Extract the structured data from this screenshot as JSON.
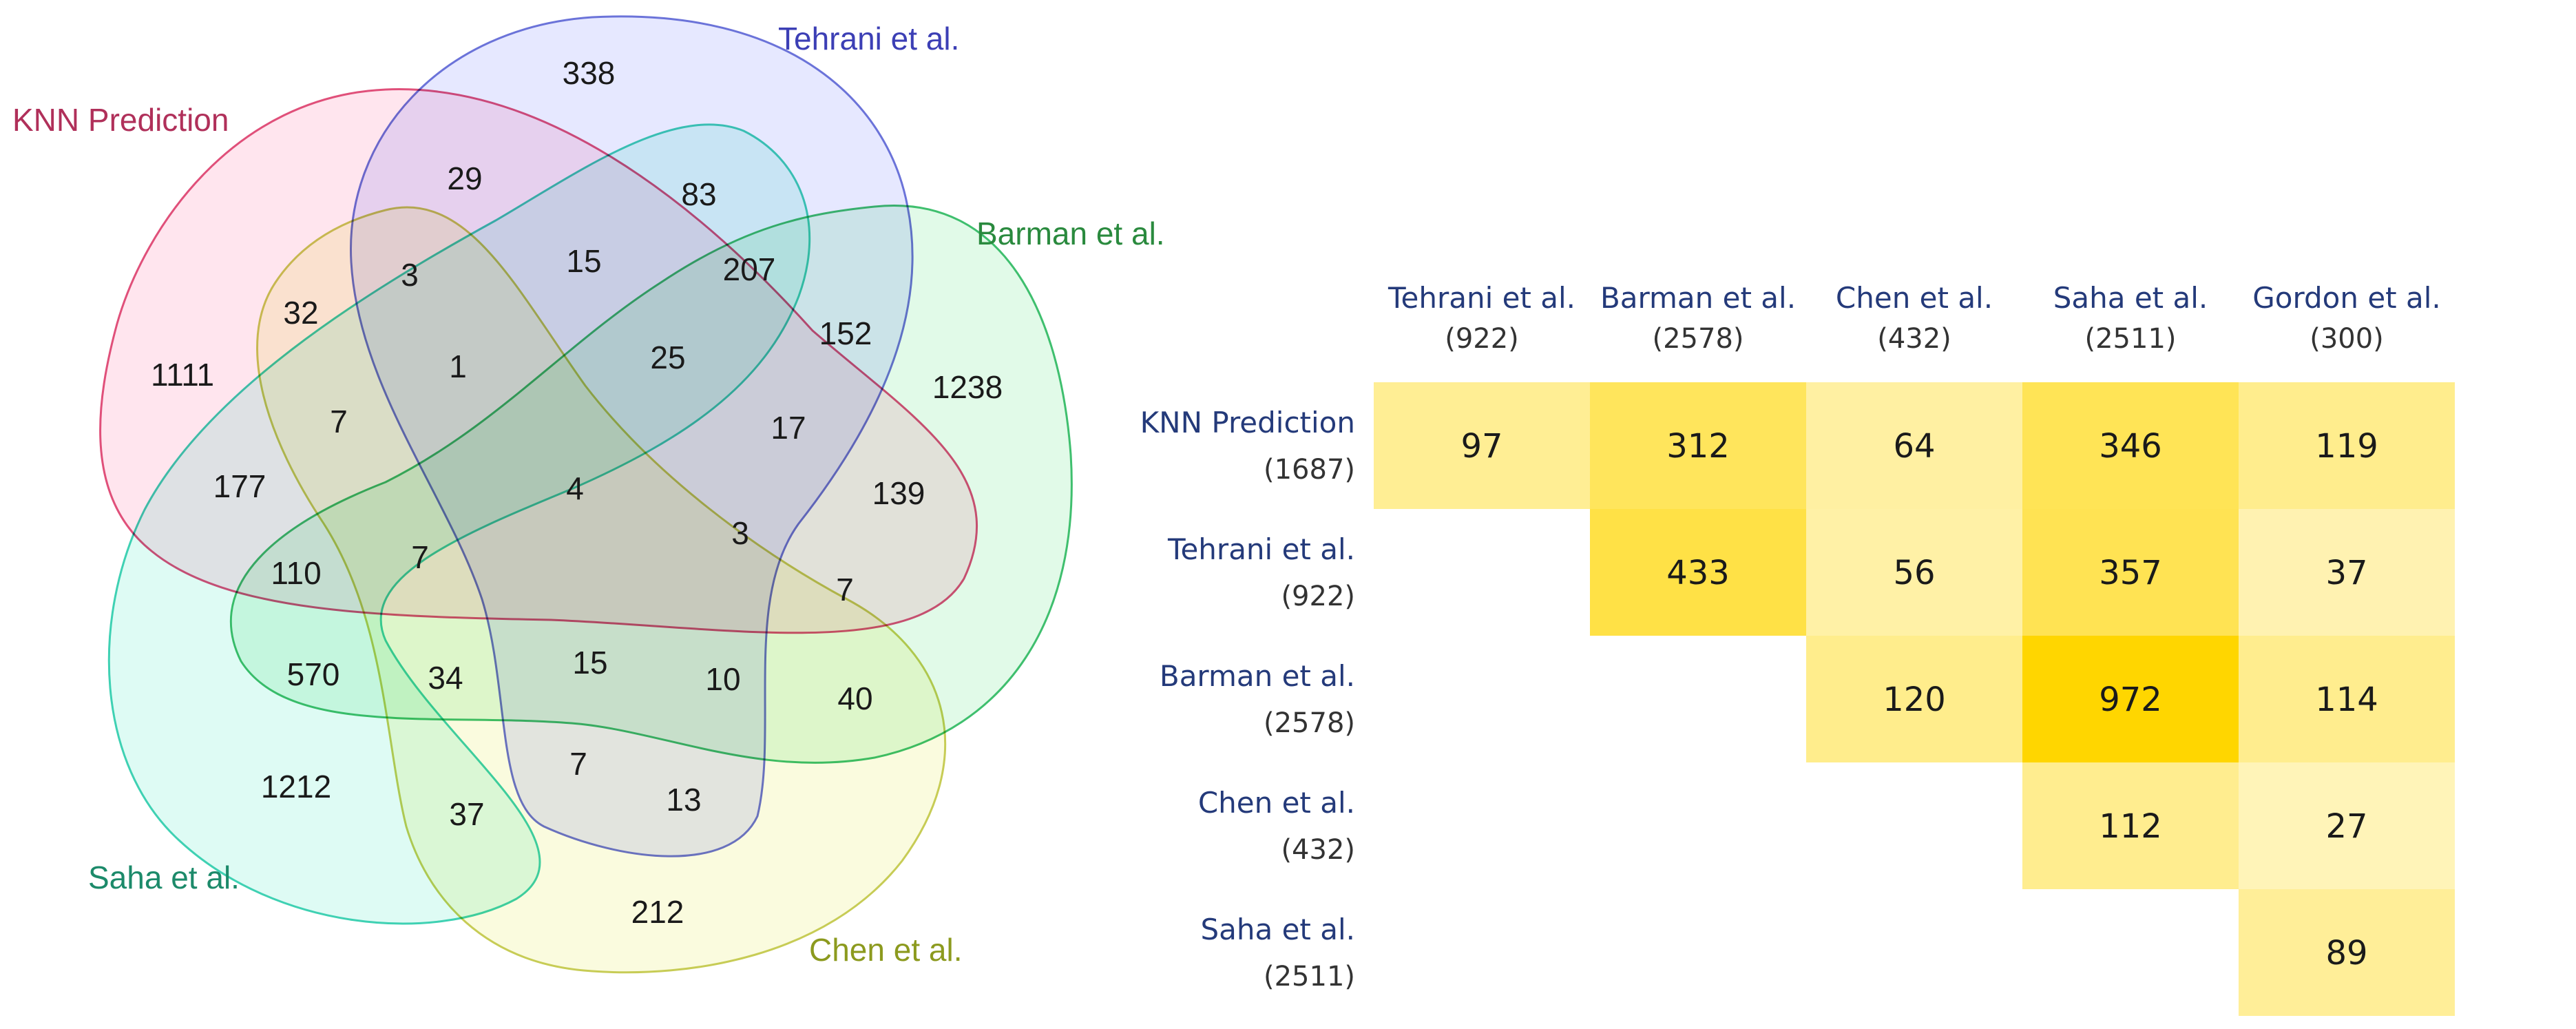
{
  "venn": {
    "sets": [
      {
        "key": "knn",
        "label": "KNN Prediction",
        "stroke": "#e0507a",
        "fill": "#ffc0d6",
        "label_color": "#b0305a"
      },
      {
        "key": "tehrani",
        "label": "Tehrani et al.",
        "stroke": "#6b73d9",
        "fill": "#c4c8ff",
        "label_color": "#3c3fb5"
      },
      {
        "key": "barman",
        "label": "Barman et al.",
        "stroke": "#3fbf6e",
        "fill": "#b8f2c8",
        "label_color": "#2a8a3e"
      },
      {
        "key": "chen",
        "label": "Chen et al.",
        "stroke": "#c7cc55",
        "fill": "#f4f6b0",
        "label_color": "#8c9a1e"
      },
      {
        "key": "saha",
        "label": "Saha et al.",
        "stroke": "#3fd1b3",
        "fill": "#b0f5e4",
        "label_color": "#1c8a6a"
      }
    ],
    "regions": [
      {
        "id": "knn_only",
        "value": "1111"
      },
      {
        "id": "tehrani_only",
        "value": "338"
      },
      {
        "id": "barman_only",
        "value": "1238"
      },
      {
        "id": "chen_only",
        "value": "212"
      },
      {
        "id": "saha_only",
        "value": "1212"
      },
      {
        "id": "r29",
        "value": "29"
      },
      {
        "id": "r83",
        "value": "83"
      },
      {
        "id": "r3a",
        "value": "3"
      },
      {
        "id": "r15a",
        "value": "15"
      },
      {
        "id": "r207",
        "value": "207"
      },
      {
        "id": "r32",
        "value": "32"
      },
      {
        "id": "r152",
        "value": "152"
      },
      {
        "id": "r1",
        "value": "1"
      },
      {
        "id": "r25",
        "value": "25"
      },
      {
        "id": "r7a",
        "value": "7"
      },
      {
        "id": "r17",
        "value": "17"
      },
      {
        "id": "r177",
        "value": "177"
      },
      {
        "id": "r139",
        "value": "139"
      },
      {
        "id": "r4",
        "value": "4"
      },
      {
        "id": "r3b",
        "value": "3"
      },
      {
        "id": "r110",
        "value": "110"
      },
      {
        "id": "r7b",
        "value": "7"
      },
      {
        "id": "r7c",
        "value": "7"
      },
      {
        "id": "r570",
        "value": "570"
      },
      {
        "id": "r34",
        "value": "34"
      },
      {
        "id": "r15b",
        "value": "15"
      },
      {
        "id": "r10",
        "value": "10"
      },
      {
        "id": "r40",
        "value": "40"
      },
      {
        "id": "r7d",
        "value": "7"
      },
      {
        "id": "r13",
        "value": "13"
      },
      {
        "id": "r37",
        "value": "37"
      }
    ]
  },
  "heatmap": {
    "columns": [
      {
        "name": "Tehrani et al.",
        "count": "(922)"
      },
      {
        "name": "Barman et al.",
        "count": "(2578)"
      },
      {
        "name": "Chen et al.",
        "count": "(432)"
      },
      {
        "name": "Saha et al.",
        "count": "(2511)"
      },
      {
        "name": "Gordon et al.",
        "count": "(300)"
      }
    ],
    "rows": [
      {
        "name": "KNN Prediction",
        "count": "(1687)",
        "values": [
          97,
          312,
          64,
          346,
          119
        ]
      },
      {
        "name": "Tehrani et al.",
        "count": "(922)",
        "values": [
          null,
          433,
          56,
          357,
          37
        ]
      },
      {
        "name": "Barman et al.",
        "count": "(2578)",
        "values": [
          null,
          null,
          120,
          972,
          114
        ]
      },
      {
        "name": "Chen et al.",
        "count": "(432)",
        "values": [
          null,
          null,
          null,
          112,
          27
        ]
      },
      {
        "name": "Saha et al.",
        "count": "(2511)",
        "values": [
          null,
          null,
          null,
          null,
          89
        ]
      }
    ],
    "color_low": "#fffbe6",
    "color_high": "#ffd600"
  }
}
